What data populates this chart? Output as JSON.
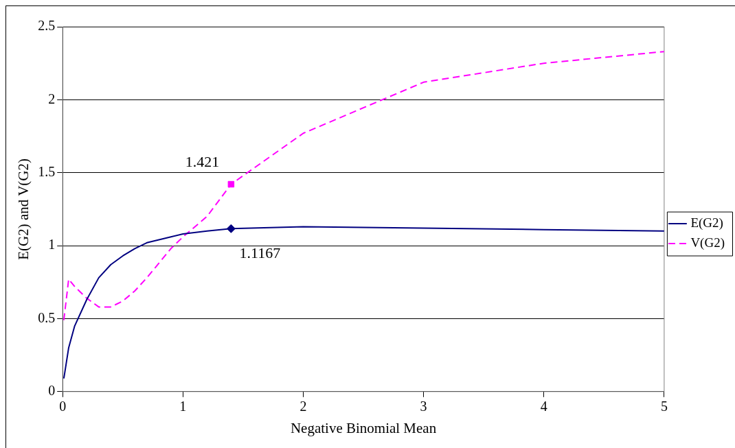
{
  "chart_data": {
    "type": "line",
    "xlabel": "Negative Binomial Mean",
    "ylabel": "E(G2) and V(G2)",
    "x": [
      0.01,
      0.05,
      0.1,
      0.2,
      0.3,
      0.4,
      0.5,
      0.6,
      0.7,
      0.8,
      0.9,
      1,
      1.2,
      1.4,
      2,
      3,
      4,
      5
    ],
    "series": [
      {
        "name": "E(G2)",
        "color": "#000080",
        "line_style": "solid",
        "values": [
          0.09,
          0.3,
          0.45,
          0.63,
          0.78,
          0.87,
          0.93,
          0.98,
          1.02,
          1.04,
          1.06,
          1.08,
          1.1,
          1.1167,
          1.13,
          1.12,
          1.11,
          1.1
        ]
      },
      {
        "name": "V(G2)",
        "color": "#ff00ff",
        "line_style": "dashed",
        "values": [
          0.49,
          0.77,
          0.72,
          0.64,
          0.58,
          0.58,
          0.62,
          0.69,
          0.78,
          0.88,
          0.98,
          1.06,
          1.2,
          1.421,
          1.77,
          2.12,
          2.25,
          2.33
        ]
      },
      {
        "type": "scatter",
        "color": "#000080",
        "marker": "diamond",
        "x": [
          1.4
        ],
        "values": [
          1.1167
        ],
        "value_labels": [
          "1.1167"
        ]
      },
      {
        "type": "scatter",
        "color": "#ff00ff",
        "marker": "square",
        "x": [
          1.4
        ],
        "values": [
          1.421
        ],
        "value_labels": [
          "1.421"
        ]
      }
    ],
    "xlim": [
      0,
      5
    ],
    "xticks": [
      0,
      1,
      2,
      3,
      4,
      5
    ],
    "ylim": [
      0,
      2.5
    ],
    "yticks": [
      0,
      0.5,
      1,
      1.5,
      2,
      2.5
    ],
    "grid": "y",
    "legend": "right"
  }
}
